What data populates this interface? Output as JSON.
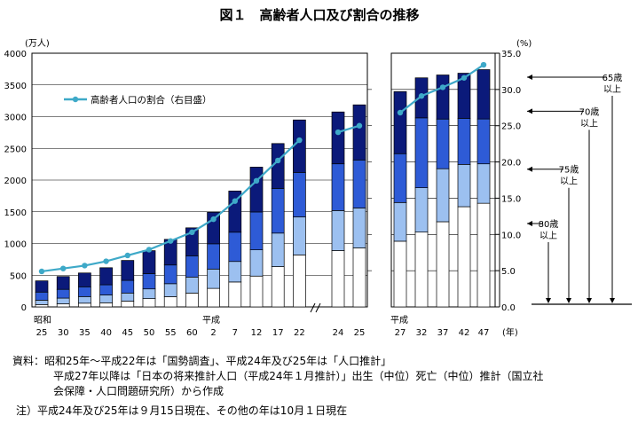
{
  "chart_data": {
    "type": "bar",
    "title": "図１　高齢者人口及び割合の推移",
    "left_axis": {
      "unit": "(万人)",
      "min": 0,
      "max": 4000,
      "step": 500
    },
    "right_axis": {
      "unit": "(%)",
      "min": 0,
      "max": 35,
      "step": 5,
      "tick_labels": [
        "0.0",
        "5.0",
        "10.0",
        "15.0",
        "20.0",
        "25.0",
        "30.0",
        "35.0"
      ]
    },
    "legend": {
      "line_label": "高齢者人口の割合（右目盛）",
      "position": "top-left"
    },
    "era_labels": {
      "showa": "昭和",
      "heisei_left": "平成",
      "heisei_right": "平成"
    },
    "year_suffix": "(年)",
    "panels": [
      {
        "group": "actual",
        "x": [
          "25",
          "30",
          "35",
          "40",
          "45",
          "50",
          "55",
          "60",
          "2",
          "7",
          "12",
          "17",
          "22"
        ],
        "totals_65_plus": [
          411,
          479,
          535,
          618,
          733,
          887,
          1065,
          1247,
          1493,
          1828,
          2204,
          2576,
          2948
        ],
        "totals_70_plus": [
          234,
          277,
          317,
          349,
          418,
          526,
          661,
          806,
          995,
          1178,
          1497,
          1869,
          2121
        ],
        "totals_75_plus": [
          106,
          139,
          163,
          189,
          219,
          284,
          366,
          471,
          597,
          717,
          900,
          1164,
          1419
        ],
        "totals_80_plus": [
          37,
          49,
          59,
          65,
          92,
          131,
          162,
          218,
          292,
          393,
          486,
          636,
          820
        ],
        "ratio_percent": [
          4.9,
          5.3,
          5.7,
          6.3,
          7.1,
          7.9,
          9.1,
          10.3,
          12.1,
          14.6,
          17.4,
          20.2,
          23.0
        ]
      },
      {
        "group": "estimate",
        "x": [
          "24",
          "25"
        ],
        "totals_65_plus": [
          3074,
          3186
        ],
        "totals_70_plus": [
          2256,
          2317
        ],
        "totals_75_plus": [
          1519,
          1560
        ],
        "totals_80_plus": [
          888,
          930
        ],
        "ratio_percent": [
          24.1,
          25.0
        ]
      },
      {
        "group": "projection",
        "x": [
          "27",
          "32",
          "37",
          "42",
          "47"
        ],
        "totals_65_plus": [
          3395,
          3612,
          3657,
          3685,
          3741
        ],
        "totals_70_plus": [
          2416,
          2981,
          2962,
          2974,
          2963
        ],
        "totals_75_plus": [
          1646,
          1879,
          2179,
          2247,
          2256
        ],
        "totals_80_plus": [
          1036,
          1180,
          1343,
          1580,
          1634
        ],
        "ratio_percent": [
          26.8,
          29.1,
          30.3,
          31.6,
          33.4
        ]
      }
    ],
    "right_labels": [
      {
        "lines": [
          "65歳",
          "以上"
        ]
      },
      {
        "lines": [
          "70歳",
          "以上"
        ]
      },
      {
        "lines": [
          "75歳",
          "以上"
        ]
      },
      {
        "lines": [
          "80歳",
          "以上"
        ]
      }
    ],
    "colors": {
      "band_65_69": "#0b1a7a",
      "band_70_74": "#2e5bd6",
      "band_75_79": "#9cc0f0",
      "band_80_plus": "#ffffff",
      "ratio_line": "#3ea9c8"
    }
  },
  "notes": {
    "line1": "資料：昭和25年～平成22年は「国勢調査」、平成24年及び25年は「人口推計」",
    "line2": "平成27年以降は「日本の将来推計人口（平成24年１月推計）」出生（中位）死亡（中位）推計（国立社",
    "line3": "会保障・人口問題研究所）から作成",
    "line4": "注）平成24年及び25年は９月15日現在、その他の年は10月１日現在"
  }
}
